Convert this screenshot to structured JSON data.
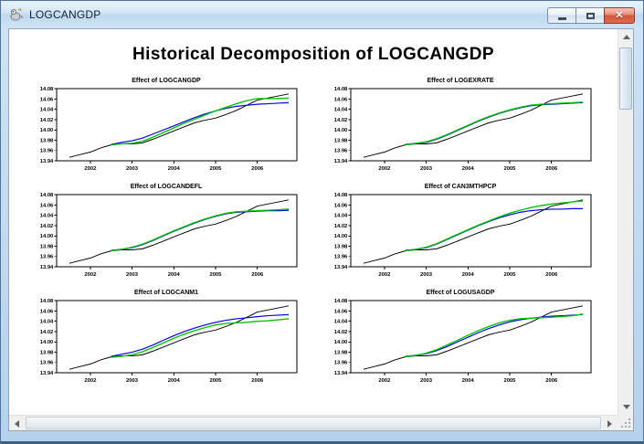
{
  "window": {
    "title": "LOGCANGDP",
    "controls": {
      "minimize_label": "minimize",
      "maximize_label": "maximize",
      "close_label": "close",
      "close_glyph": "✕"
    }
  },
  "page": {
    "heading": "Historical Decomposition of LOGCANGDP"
  },
  "icons": {
    "app_icon": "rats-application-icon",
    "scroll_up": "triangle-up",
    "scroll_down": "triangle-down",
    "scroll_left": "triangle-left",
    "scroll_right": "triangle-right",
    "resize_grip": "diagonal-dots"
  },
  "chart_data": {
    "type": "line",
    "layout": "3x2 grid of subplots, shared axes",
    "figure_title": "Historical Decomposition of LOGCANGDP",
    "xlim": [
      2001.2,
      2006.95
    ],
    "ylim": [
      13.94,
      14.08
    ],
    "x_ticks": [
      2002,
      2003,
      2004,
      2005,
      2006
    ],
    "y_ticks": [
      13.94,
      13.96,
      13.98,
      14.0,
      14.02,
      14.04,
      14.06,
      14.08
    ],
    "grid": "off",
    "legend": "none",
    "colors": {
      "actual": "#000000",
      "base_forecast": "#0000ee",
      "forecast_with_shock": "#00c300"
    },
    "x_actual": [
      2001.5,
      2001.75,
      2002.0,
      2002.25,
      2002.5,
      2002.75,
      2003.0,
      2003.25,
      2003.5,
      2003.75,
      2004.0,
      2004.25,
      2004.5,
      2004.75,
      2005.0,
      2005.25,
      2005.5,
      2005.75,
      2006.0,
      2006.25,
      2006.5,
      2006.75
    ],
    "actual": [
      13.947,
      13.952,
      13.957,
      13.965,
      13.971,
      13.973,
      13.973,
      13.975,
      13.982,
      13.99,
      13.998,
      14.006,
      14.014,
      14.019,
      14.023,
      14.03,
      14.038,
      14.048,
      14.058,
      14.062,
      14.066,
      14.07
    ],
    "x_counterfactual": [
      2002.5,
      2002.75,
      2003.0,
      2003.25,
      2003.5,
      2003.75,
      2004.0,
      2004.25,
      2004.5,
      2004.75,
      2005.0,
      2005.25,
      2005.5,
      2005.75,
      2006.0,
      2006.25,
      2006.5,
      2006.75
    ],
    "subplots": [
      {
        "title": "Effect of LOGCANGDP",
        "base_forecast": [
          13.972,
          13.976,
          13.979,
          13.984,
          13.992,
          14.0,
          14.008,
          14.016,
          14.024,
          14.031,
          14.037,
          14.042,
          14.046,
          14.048,
          14.05,
          14.051,
          14.052,
          14.053
        ],
        "forecast_with_shock": [
          13.971,
          13.973,
          13.974,
          13.978,
          13.986,
          13.995,
          14.004,
          14.013,
          14.021,
          14.029,
          14.037,
          14.044,
          14.051,
          14.057,
          14.061,
          14.061,
          14.061,
          14.062
        ]
      },
      {
        "title": "Effect of LOGEXRATE",
        "base_forecast": [
          13.972,
          13.974,
          13.976,
          13.982,
          13.99,
          13.999,
          14.008,
          14.017,
          14.025,
          14.032,
          14.038,
          14.043,
          14.047,
          14.049,
          14.05,
          14.051,
          14.052,
          14.053
        ],
        "forecast_with_shock": [
          13.971,
          13.974,
          13.977,
          13.983,
          13.991,
          14.0,
          14.009,
          14.018,
          14.026,
          14.033,
          14.039,
          14.044,
          14.048,
          14.05,
          14.051,
          14.052,
          14.053,
          14.054
        ]
      },
      {
        "title": "Effect of LOGCANDEFL",
        "base_forecast": [
          13.972,
          13.974,
          13.977,
          13.983,
          13.991,
          14.0,
          14.009,
          14.017,
          14.025,
          14.032,
          14.038,
          14.043,
          14.046,
          14.047,
          14.048,
          14.049,
          14.049,
          14.05
        ],
        "forecast_with_shock": [
          13.971,
          13.974,
          13.978,
          13.984,
          13.992,
          14.001,
          14.01,
          14.018,
          14.026,
          14.033,
          14.039,
          14.044,
          14.047,
          14.048,
          14.049,
          14.05,
          14.051,
          14.052
        ]
      },
      {
        "title": "Effect of CAN3MTHPCP",
        "base_forecast": [
          13.972,
          13.974,
          13.977,
          13.984,
          13.993,
          14.002,
          14.011,
          14.02,
          14.028,
          14.035,
          14.041,
          14.046,
          14.049,
          14.051,
          14.052,
          14.052,
          14.053,
          14.053
        ],
        "forecast_with_shock": [
          13.971,
          13.974,
          13.978,
          13.985,
          13.994,
          14.003,
          14.012,
          14.021,
          14.029,
          14.037,
          14.044,
          14.05,
          14.055,
          14.059,
          14.062,
          14.064,
          14.066,
          14.068
        ]
      },
      {
        "title": "Effect of LOGCANM1",
        "base_forecast": [
          13.972,
          13.976,
          13.98,
          13.986,
          13.994,
          14.003,
          14.012,
          14.02,
          14.027,
          14.033,
          14.038,
          14.042,
          14.045,
          14.047,
          14.049,
          14.051,
          14.052,
          14.053
        ],
        "forecast_with_shock": [
          13.97,
          13.972,
          13.975,
          13.981,
          13.989,
          13.998,
          14.007,
          14.015,
          14.022,
          14.028,
          14.033,
          14.036,
          14.037,
          14.038,
          14.04,
          14.041,
          14.043,
          14.045
        ]
      },
      {
        "title": "Effect of LOGUSAGDP",
        "base_forecast": [
          13.972,
          13.974,
          13.977,
          13.983,
          13.991,
          14.0,
          14.009,
          14.018,
          14.026,
          14.033,
          14.039,
          14.043,
          14.046,
          14.048,
          14.05,
          14.051,
          14.052,
          14.053
        ],
        "forecast_with_shock": [
          13.971,
          13.974,
          13.978,
          13.985,
          13.994,
          14.003,
          14.013,
          14.022,
          14.03,
          14.037,
          14.042,
          14.045,
          14.046,
          14.047,
          14.048,
          14.049,
          14.051,
          14.054
        ]
      }
    ]
  }
}
